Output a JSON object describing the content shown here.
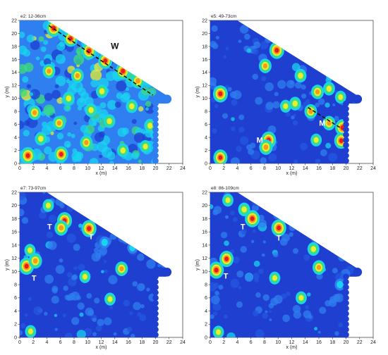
{
  "chart_data": [
    {
      "type": "heatmap",
      "title": "e2: 12-36cm",
      "xlabel": "x (m)",
      "ylabel": "y (m)",
      "xlim": [
        0,
        24
      ],
      "ylim": [
        0,
        22
      ],
      "xticks": [
        "0",
        "2",
        "4",
        "6",
        "8",
        "10",
        "12",
        "14",
        "16",
        "18",
        "20",
        "22",
        "24"
      ],
      "yticks": [
        "0",
        "2",
        "4",
        "6",
        "8",
        "10",
        "12",
        "14",
        "16",
        "18",
        "20",
        "22"
      ],
      "colors": [
        "#1e3fd0",
        "#2f7ff0",
        "#19d4f0",
        "#3ddc7a",
        "#e8ee30",
        "#f39a1f",
        "#e81c1c"
      ],
      "annotations": [
        {
          "text": "W",
          "x": 14,
          "y": 17.6
        }
      ],
      "dashed_line": {
        "x": [
          4.3,
          19.6
        ],
        "y": [
          21.2,
          10.5
        ]
      },
      "hotspots": [
        {
          "x": 5,
          "y": 20.8,
          "intensity": 1.0
        },
        {
          "x": 7.5,
          "y": 19.2,
          "intensity": 0.9
        },
        {
          "x": 10.2,
          "y": 17.3,
          "intensity": 1.0
        },
        {
          "x": 12.6,
          "y": 15.8,
          "intensity": 0.9
        },
        {
          "x": 15.2,
          "y": 14.2,
          "intensity": 1.0
        },
        {
          "x": 17.4,
          "y": 12.7,
          "intensity": 0.8
        },
        {
          "x": 1.2,
          "y": 1.2,
          "intensity": 1.0
        },
        {
          "x": 6.1,
          "y": 1.4,
          "intensity": 0.9
        },
        {
          "x": 4.3,
          "y": 14.2,
          "intensity": 0.7
        },
        {
          "x": 8.5,
          "y": 13.5,
          "intensity": 0.7
        },
        {
          "x": 2.2,
          "y": 7.8,
          "intensity": 0.7
        },
        {
          "x": 5.8,
          "y": 6.2,
          "intensity": 0.7
        },
        {
          "x": 10.5,
          "y": 8.2,
          "intensity": 0.6
        },
        {
          "x": 13.2,
          "y": 6.5,
          "intensity": 0.6
        },
        {
          "x": 16.5,
          "y": 8.8,
          "intensity": 0.6
        },
        {
          "x": 19.2,
          "y": 5.8,
          "intensity": 0.6
        },
        {
          "x": 9.8,
          "y": 3.2,
          "intensity": 0.7
        },
        {
          "x": 15.2,
          "y": 2.0,
          "intensity": 0.6
        },
        {
          "x": 3.1,
          "y": 3.8,
          "intensity": 0.6
        },
        {
          "x": 12.1,
          "y": 11.1,
          "intensity": 0.6
        },
        {
          "x": 7.2,
          "y": 10.0,
          "intensity": 0.6
        },
        {
          "x": 18.5,
          "y": 2.6,
          "intensity": 0.5
        }
      ]
    },
    {
      "type": "heatmap",
      "title": "e5: 49-73cm",
      "xlabel": "x (m)",
      "ylabel": "y (m)",
      "xlim": [
        0,
        24
      ],
      "ylim": [
        0,
        22
      ],
      "xticks": [
        "0",
        "2",
        "4",
        "6",
        "8",
        "10",
        "12",
        "14",
        "16",
        "18",
        "20",
        "22",
        "24"
      ],
      "yticks": [
        "0",
        "2",
        "4",
        "6",
        "8",
        "10",
        "12",
        "14",
        "16",
        "18",
        "20",
        "22"
      ],
      "colors": [
        "#1e3fd0",
        "#2f7ff0",
        "#19d4f0",
        "#3ddc7a",
        "#e8ee30",
        "#f39a1f",
        "#e81c1c"
      ],
      "annotations": [
        {
          "text": "M",
          "x": 7.3,
          "y": 3.2
        },
        {
          "text": "M",
          "x": 16.5,
          "y": 5.8
        }
      ],
      "dashed_line": {
        "x": [
          14.4,
          19.3
        ],
        "y": [
          8.6,
          5.4
        ]
      },
      "hotspots": [
        {
          "x": 9.8,
          "y": 17.4,
          "intensity": 1.0
        },
        {
          "x": 8.1,
          "y": 15.0,
          "intensity": 0.7
        },
        {
          "x": 13.3,
          "y": 13.5,
          "intensity": 0.6
        },
        {
          "x": 15.8,
          "y": 11.0,
          "intensity": 0.7
        },
        {
          "x": 17.5,
          "y": 11.5,
          "intensity": 0.6
        },
        {
          "x": 19.2,
          "y": 10.2,
          "intensity": 0.5
        },
        {
          "x": 1.5,
          "y": 10.7,
          "intensity": 1.0
        },
        {
          "x": 8.6,
          "y": 3.6,
          "intensity": 1.0
        },
        {
          "x": 8.2,
          "y": 2.5,
          "intensity": 0.8
        },
        {
          "x": 14.8,
          "y": 8.0,
          "intensity": 0.7
        },
        {
          "x": 17.5,
          "y": 6.2,
          "intensity": 0.7
        },
        {
          "x": 19.5,
          "y": 5.5,
          "intensity": 1.0
        },
        {
          "x": 20.6,
          "y": 7.2,
          "intensity": 0.6
        },
        {
          "x": 19.3,
          "y": 3.5,
          "intensity": 0.9
        },
        {
          "x": 1.5,
          "y": 0.9,
          "intensity": 0.9
        },
        {
          "x": 11.1,
          "y": 8.8,
          "intensity": 0.5
        },
        {
          "x": 12.5,
          "y": 9.2,
          "intensity": 0.6
        },
        {
          "x": 15.6,
          "y": 3.6,
          "intensity": 0.5
        }
      ]
    },
    {
      "type": "heatmap",
      "title": "e7: 73-97cm",
      "xlabel": "x (m)",
      "ylabel": "y (m)",
      "xlim": [
        0,
        24
      ],
      "ylim": [
        0,
        22
      ],
      "xticks": [
        "0",
        "2",
        "4",
        "6",
        "8",
        "10",
        "12",
        "14",
        "16",
        "18",
        "20",
        "22",
        "24"
      ],
      "yticks": [
        "0",
        "2",
        "4",
        "6",
        "8",
        "10",
        "12",
        "14",
        "16",
        "18",
        "20",
        "22"
      ],
      "colors": [
        "#1e3fd0",
        "#2f7ff0",
        "#19d4f0",
        "#3ddc7a",
        "#e8ee30",
        "#f39a1f",
        "#e81c1c"
      ],
      "annotations": [
        {
          "text": "T",
          "x": 4.4,
          "y": 16.4
        },
        {
          "text": "T",
          "x": 10.5,
          "y": 14.9
        },
        {
          "text": "T",
          "x": 2.1,
          "y": 8.6
        }
      ],
      "dashed_line": null,
      "hotspots": [
        {
          "x": 6.6,
          "y": 17.7,
          "intensity": 1.0
        },
        {
          "x": 6.1,
          "y": 16.6,
          "intensity": 0.8
        },
        {
          "x": 10.2,
          "y": 16.5,
          "intensity": 1.0
        },
        {
          "x": 1.0,
          "y": 10.8,
          "intensity": 1.0
        },
        {
          "x": 2.3,
          "y": 11.6,
          "intensity": 0.8
        },
        {
          "x": 1.5,
          "y": 13.2,
          "intensity": 0.5
        },
        {
          "x": 15.0,
          "y": 10.4,
          "intensity": 0.7
        },
        {
          "x": 9.6,
          "y": 9.2,
          "intensity": 0.5
        },
        {
          "x": 13.3,
          "y": 5.8,
          "intensity": 0.5
        },
        {
          "x": 1.6,
          "y": 0.9,
          "intensity": 0.5
        },
        {
          "x": 4.2,
          "y": 20.0,
          "intensity": 0.5
        },
        {
          "x": 12.5,
          "y": 14.4,
          "intensity": 0.4
        },
        {
          "x": 16.6,
          "y": 13.6,
          "intensity": 0.4
        }
      ]
    },
    {
      "type": "heatmap",
      "title": "e8: 86-109cm",
      "xlabel": "x (m)",
      "ylabel": "y (m)",
      "xlim": [
        0,
        24
      ],
      "ylim": [
        0,
        22
      ],
      "xticks": [
        "0",
        "2",
        "4",
        "6",
        "8",
        "10",
        "12",
        "14",
        "16",
        "18",
        "20",
        "22",
        "24"
      ],
      "yticks": [
        "0",
        "2",
        "4",
        "6",
        "8",
        "10",
        "12",
        "14",
        "16",
        "18",
        "20",
        "22"
      ],
      "colors": [
        "#1e3fd0",
        "#2f7ff0",
        "#19d4f0",
        "#3ddc7a",
        "#e8ee30",
        "#f39a1f",
        "#e81c1c"
      ],
      "annotations": [
        {
          "text": "T",
          "x": 4.8,
          "y": 16.4
        },
        {
          "text": "T",
          "x": 10.1,
          "y": 14.7
        },
        {
          "text": "T",
          "x": 2.3,
          "y": 8.9
        }
      ],
      "dashed_line": null,
      "hotspots": [
        {
          "x": 6.2,
          "y": 18.0,
          "intensity": 1.0
        },
        {
          "x": 5.0,
          "y": 19.4,
          "intensity": 0.6
        },
        {
          "x": 10.1,
          "y": 16.6,
          "intensity": 1.0
        },
        {
          "x": 0.9,
          "y": 10.2,
          "intensity": 1.0
        },
        {
          "x": 2.4,
          "y": 11.9,
          "intensity": 0.9
        },
        {
          "x": 15.2,
          "y": 13.4,
          "intensity": 0.6
        },
        {
          "x": 16.0,
          "y": 10.6,
          "intensity": 0.7
        },
        {
          "x": 13.4,
          "y": 6.0,
          "intensity": 0.5
        },
        {
          "x": 9.5,
          "y": 9.0,
          "intensity": 0.5
        },
        {
          "x": 19.1,
          "y": 8.0,
          "intensity": 0.4
        },
        {
          "x": 1.2,
          "y": 0.8,
          "intensity": 0.5
        },
        {
          "x": 2.6,
          "y": 20.8,
          "intensity": 0.5
        }
      ]
    }
  ]
}
